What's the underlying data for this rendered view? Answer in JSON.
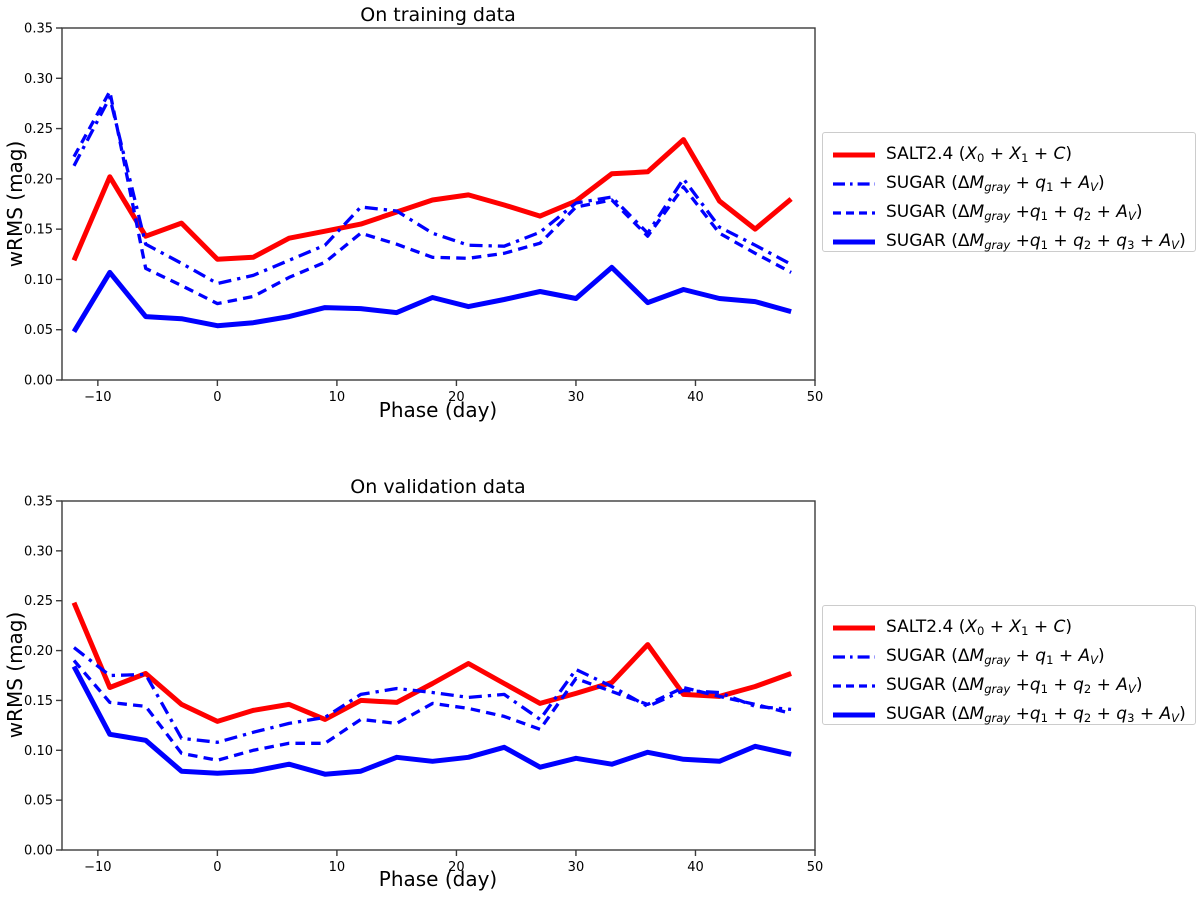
{
  "figure": {
    "background": "#ffffff"
  },
  "palette": {
    "salt_red": "#ff0000",
    "sugar_blue": "#0000ff",
    "axis_color": "#3b3b3b",
    "text_color": "#000000",
    "legend_border": "#cccccc"
  },
  "chart_data": [
    {
      "type": "line",
      "title": "On training data",
      "xlabel": "Phase (day)",
      "ylabel": "wRMS (mag)",
      "xlim": [
        -13,
        50
      ],
      "ylim": [
        0,
        0.35
      ],
      "grid": false,
      "legend_position": "right-outside",
      "xticks": [
        {
          "v": -10,
          "label": "−10"
        },
        {
          "v": 0,
          "label": "0"
        },
        {
          "v": 10,
          "label": "10"
        },
        {
          "v": 20,
          "label": "20"
        },
        {
          "v": 30,
          "label": "30"
        },
        {
          "v": 40,
          "label": "40"
        },
        {
          "v": 50,
          "label": "50"
        }
      ],
      "yticks": [
        {
          "v": 0.0,
          "label": "0.00"
        },
        {
          "v": 0.05,
          "label": "0.05"
        },
        {
          "v": 0.1,
          "label": "0.10"
        },
        {
          "v": 0.15,
          "label": "0.15"
        },
        {
          "v": 0.2,
          "label": "0.20"
        },
        {
          "v": 0.25,
          "label": "0.25"
        },
        {
          "v": 0.3,
          "label": "0.30"
        },
        {
          "v": 0.35,
          "label": "0.35"
        }
      ],
      "x": [
        -12,
        -9,
        -6,
        -3,
        0,
        3,
        6,
        9,
        12,
        15,
        18,
        21,
        24,
        27,
        30,
        33,
        36,
        39,
        42,
        45,
        48
      ],
      "series": [
        {
          "id": "salt24",
          "label": "SALT2.4 (X0 + X1 + C)",
          "color": "#ff0000",
          "style": "solid",
          "width": 5,
          "values": [
            0.119,
            0.202,
            0.143,
            0.156,
            0.12,
            0.122,
            0.141,
            0.148,
            0.155,
            0.167,
            0.179,
            0.184,
            0.174,
            0.163,
            0.178,
            0.205,
            0.207,
            0.239,
            0.178,
            0.15,
            0.18
          ]
        },
        {
          "id": "sugar-q1",
          "label": "SUGAR (ΔMgray + q1 + AV)",
          "color": "#0000ff",
          "style": "dashdot",
          "width": 3.3,
          "values": [
            0.213,
            0.281,
            0.135,
            0.116,
            0.096,
            0.104,
            0.119,
            0.134,
            0.172,
            0.168,
            0.146,
            0.134,
            0.133,
            0.147,
            0.176,
            0.182,
            0.146,
            0.2,
            0.152,
            0.134,
            0.115
          ]
        },
        {
          "id": "sugar-q1q2",
          "label": "SUGAR (ΔMgray +q1 + q2 + AV)",
          "color": "#0000ff",
          "style": "dashed",
          "width": 3.3,
          "values": [
            0.222,
            0.287,
            0.111,
            0.094,
            0.076,
            0.083,
            0.102,
            0.117,
            0.146,
            0.135,
            0.122,
            0.121,
            0.126,
            0.136,
            0.172,
            0.179,
            0.143,
            0.192,
            0.146,
            0.126,
            0.107
          ]
        },
        {
          "id": "sugar-q1q2q3",
          "label": "SUGAR (ΔMgray +q1 + q2 + q3 + AV)",
          "color": "#0000ff",
          "style": "solid",
          "width": 5,
          "values": [
            0.048,
            0.107,
            0.063,
            0.061,
            0.054,
            0.057,
            0.063,
            0.072,
            0.071,
            0.067,
            0.082,
            0.073,
            0.08,
            0.088,
            0.081,
            0.112,
            0.077,
            0.09,
            0.081,
            0.078,
            0.068
          ]
        }
      ],
      "legend_entries": [
        {
          "id": "salt24",
          "parts": [
            {
              "t": "SALT2.4 ("
            },
            {
              "t": "X",
              "i": true
            },
            {
              "t": "0",
              "s": true
            },
            {
              "t": " + "
            },
            {
              "t": "X",
              "i": true
            },
            {
              "t": "1",
              "s": true
            },
            {
              "t": " + "
            },
            {
              "t": "C",
              "i": true
            },
            {
              "t": ")"
            }
          ]
        },
        {
          "id": "sugar-q1",
          "parts": [
            {
              "t": "SUGAR ("
            },
            {
              "t": "Δ"
            },
            {
              "t": "M",
              "i": true
            },
            {
              "t": "gray",
              "s": true,
              "i": true
            },
            {
              "t": " + "
            },
            {
              "t": "q",
              "i": true
            },
            {
              "t": "1",
              "s": true
            },
            {
              "t": " + "
            },
            {
              "t": "A",
              "i": true
            },
            {
              "t": "V",
              "s": true,
              "i": true
            },
            {
              "t": ")"
            }
          ]
        },
        {
          "id": "sugar-q1q2",
          "parts": [
            {
              "t": "SUGAR ("
            },
            {
              "t": "Δ"
            },
            {
              "t": "M",
              "i": true
            },
            {
              "t": "gray",
              "s": true,
              "i": true
            },
            {
              "t": " +"
            },
            {
              "t": "q",
              "i": true
            },
            {
              "t": "1",
              "s": true
            },
            {
              "t": " + "
            },
            {
              "t": "q",
              "i": true
            },
            {
              "t": "2",
              "s": true
            },
            {
              "t": " + "
            },
            {
              "t": "A",
              "i": true
            },
            {
              "t": "V",
              "s": true,
              "i": true
            },
            {
              "t": ")"
            }
          ]
        },
        {
          "id": "sugar-q1q2q3",
          "parts": [
            {
              "t": "SUGAR ("
            },
            {
              "t": "Δ"
            },
            {
              "t": "M",
              "i": true
            },
            {
              "t": "gray",
              "s": true,
              "i": true
            },
            {
              "t": " +"
            },
            {
              "t": "q",
              "i": true
            },
            {
              "t": "1",
              "s": true
            },
            {
              "t": " + "
            },
            {
              "t": "q",
              "i": true
            },
            {
              "t": "2",
              "s": true
            },
            {
              "t": " + "
            },
            {
              "t": "q",
              "i": true
            },
            {
              "t": "3",
              "s": true
            },
            {
              "t": " + "
            },
            {
              "t": "A",
              "i": true
            },
            {
              "t": "V",
              "s": true,
              "i": true
            },
            {
              "t": ")"
            }
          ]
        }
      ]
    },
    {
      "type": "line",
      "title": "On validation data",
      "xlabel": "Phase (day)",
      "ylabel": "wRMS (mag)",
      "xlim": [
        -13,
        50
      ],
      "ylim": [
        0,
        0.35
      ],
      "grid": false,
      "legend_position": "right-outside",
      "xticks": [
        {
          "v": -10,
          "label": "−10"
        },
        {
          "v": 0,
          "label": "0"
        },
        {
          "v": 10,
          "label": "10"
        },
        {
          "v": 20,
          "label": "20"
        },
        {
          "v": 30,
          "label": "30"
        },
        {
          "v": 40,
          "label": "40"
        },
        {
          "v": 50,
          "label": "50"
        }
      ],
      "yticks": [
        {
          "v": 0.0,
          "label": "0.00"
        },
        {
          "v": 0.05,
          "label": "0.05"
        },
        {
          "v": 0.1,
          "label": "0.10"
        },
        {
          "v": 0.15,
          "label": "0.15"
        },
        {
          "v": 0.2,
          "label": "0.20"
        },
        {
          "v": 0.25,
          "label": "0.25"
        },
        {
          "v": 0.3,
          "label": "0.30"
        },
        {
          "v": 0.35,
          "label": "0.35"
        }
      ],
      "x": [
        -12,
        -9,
        -6,
        -3,
        0,
        3,
        6,
        9,
        12,
        15,
        18,
        21,
        24,
        27,
        30,
        33,
        36,
        39,
        42,
        45,
        48
      ],
      "series": [
        {
          "id": "salt24",
          "label": "SALT2.4 (X0 + X1 + C)",
          "color": "#ff0000",
          "style": "solid",
          "width": 5,
          "values": [
            0.248,
            0.163,
            0.177,
            0.146,
            0.129,
            0.14,
            0.146,
            0.131,
            0.15,
            0.148,
            0.167,
            0.187,
            0.167,
            0.147,
            0.157,
            0.168,
            0.206,
            0.156,
            0.154,
            0.164,
            0.177
          ]
        },
        {
          "id": "sugar-q1",
          "label": "SUGAR (ΔMgray + q1 + AV)",
          "color": "#0000ff",
          "style": "dashdot",
          "width": 3.3,
          "values": [
            0.203,
            0.175,
            0.176,
            0.112,
            0.108,
            0.118,
            0.127,
            0.133,
            0.156,
            0.162,
            0.158,
            0.153,
            0.156,
            0.131,
            0.181,
            0.164,
            0.144,
            0.16,
            0.158,
            0.144,
            0.141
          ]
        },
        {
          "id": "sugar-q1q2",
          "label": "SUGAR (ΔMgray +q1 + q2 + AV)",
          "color": "#0000ff",
          "style": "dashed",
          "width": 3.3,
          "values": [
            0.19,
            0.148,
            0.144,
            0.097,
            0.09,
            0.1,
            0.107,
            0.107,
            0.131,
            0.127,
            0.147,
            0.142,
            0.134,
            0.121,
            0.172,
            0.159,
            0.146,
            0.163,
            0.154,
            0.146,
            0.137
          ]
        },
        {
          "id": "sugar-q1q2q3",
          "label": "SUGAR (ΔMgray +q1 + q2 + q3 + AV)",
          "color": "#0000ff",
          "style": "solid",
          "width": 5,
          "values": [
            0.184,
            0.116,
            0.11,
            0.079,
            0.077,
            0.079,
            0.086,
            0.076,
            0.079,
            0.093,
            0.089,
            0.093,
            0.103,
            0.083,
            0.092,
            0.086,
            0.098,
            0.091,
            0.089,
            0.104,
            0.096
          ]
        }
      ],
      "legend_entries": [
        {
          "id": "salt24",
          "parts": [
            {
              "t": "SALT2.4 ("
            },
            {
              "t": "X",
              "i": true
            },
            {
              "t": "0",
              "s": true
            },
            {
              "t": " + "
            },
            {
              "t": "X",
              "i": true
            },
            {
              "t": "1",
              "s": true
            },
            {
              "t": " + "
            },
            {
              "t": "C",
              "i": true
            },
            {
              "t": ")"
            }
          ]
        },
        {
          "id": "sugar-q1",
          "parts": [
            {
              "t": "SUGAR ("
            },
            {
              "t": "Δ"
            },
            {
              "t": "M",
              "i": true
            },
            {
              "t": "gray",
              "s": true,
              "i": true
            },
            {
              "t": " + "
            },
            {
              "t": "q",
              "i": true
            },
            {
              "t": "1",
              "s": true
            },
            {
              "t": " + "
            },
            {
              "t": "A",
              "i": true
            },
            {
              "t": "V",
              "s": true,
              "i": true
            },
            {
              "t": ")"
            }
          ]
        },
        {
          "id": "sugar-q1q2",
          "parts": [
            {
              "t": "SUGAR ("
            },
            {
              "t": "Δ"
            },
            {
              "t": "M",
              "i": true
            },
            {
              "t": "gray",
              "s": true,
              "i": true
            },
            {
              "t": " +"
            },
            {
              "t": "q",
              "i": true
            },
            {
              "t": "1",
              "s": true
            },
            {
              "t": " + "
            },
            {
              "t": "q",
              "i": true
            },
            {
              "t": "2",
              "s": true
            },
            {
              "t": " + "
            },
            {
              "t": "A",
              "i": true
            },
            {
              "t": "V",
              "s": true,
              "i": true
            },
            {
              "t": ")"
            }
          ]
        },
        {
          "id": "sugar-q1q2q3",
          "parts": [
            {
              "t": "SUGAR ("
            },
            {
              "t": "Δ"
            },
            {
              "t": "M",
              "i": true
            },
            {
              "t": "gray",
              "s": true,
              "i": true
            },
            {
              "t": " +"
            },
            {
              "t": "q",
              "i": true
            },
            {
              "t": "1",
              "s": true
            },
            {
              "t": " + "
            },
            {
              "t": "q",
              "i": true
            },
            {
              "t": "2",
              "s": true
            },
            {
              "t": " + "
            },
            {
              "t": "q",
              "i": true
            },
            {
              "t": "3",
              "s": true
            },
            {
              "t": " + "
            },
            {
              "t": "A",
              "i": true
            },
            {
              "t": "V",
              "s": true,
              "i": true
            },
            {
              "t": ")"
            }
          ]
        }
      ]
    }
  ]
}
